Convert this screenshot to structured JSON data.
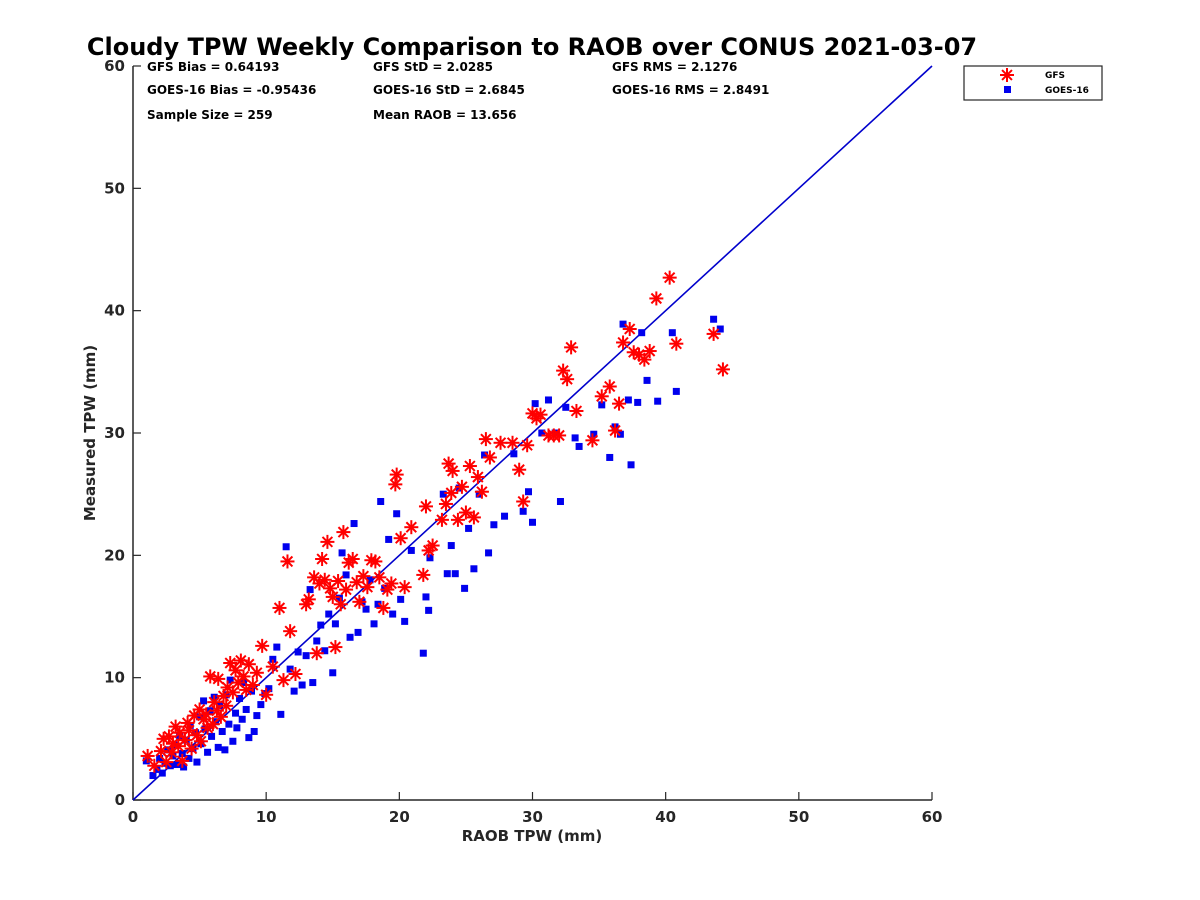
{
  "chart_data": {
    "type": "scatter",
    "title": "Cloudy TPW Weekly Comparison to RAOB over CONUS 2021-03-07",
    "xlabel": "RAOB TPW (mm)",
    "ylabel": "Measured TPW (mm)",
    "xlim": [
      0,
      60
    ],
    "ylim": [
      0,
      60
    ],
    "xticks": [
      "0",
      "10",
      "20",
      "30",
      "40",
      "50",
      "60"
    ],
    "yticks": [
      "0",
      "10",
      "20",
      "30",
      "40",
      "50",
      "60"
    ],
    "grid": false,
    "legend_position": "top-right, outside axes",
    "reference_line": {
      "from": [
        0,
        0
      ],
      "to": [
        60,
        60
      ],
      "color": "#0000cc"
    },
    "stats": {
      "gfs_bias": "GFS Bias = 0.64193",
      "gfs_std": "GFS StD = 2.0285",
      "gfs_rms": "GFS RMS = 2.1276",
      "goes_bias": "GOES-16 Bias = -0.95436",
      "goes_std": "GOES-16 StD = 2.6845",
      "goes_rms": "GOES-16 RMS = 2.8491",
      "sample_size": "Sample Size = 259",
      "mean_raob": "Mean RAOB = 13.656"
    },
    "series": [
      {
        "name": "GFS",
        "marker": "asterisk",
        "color": "#ff0000",
        "points": [
          [
            1.1,
            3.6
          ],
          [
            1.6,
            2.8
          ],
          [
            2.1,
            4.0
          ],
          [
            2.3,
            5.0
          ],
          [
            2.5,
            3.1
          ],
          [
            2.7,
            5.2
          ],
          [
            2.9,
            3.9
          ],
          [
            3.0,
            4.6
          ],
          [
            3.2,
            6.0
          ],
          [
            3.4,
            4.4
          ],
          [
            3.5,
            5.5
          ],
          [
            3.7,
            3.2
          ],
          [
            3.9,
            4.9
          ],
          [
            4.1,
            6.3
          ],
          [
            4.2,
            5.7
          ],
          [
            4.4,
            4.2
          ],
          [
            4.6,
            6.9
          ],
          [
            4.8,
            5.3
          ],
          [
            5.0,
            7.4
          ],
          [
            5.1,
            4.8
          ],
          [
            5.3,
            6.6
          ],
          [
            5.5,
            7.0
          ],
          [
            5.6,
            5.9
          ],
          [
            5.8,
            10.1
          ],
          [
            6.0,
            6.2
          ],
          [
            6.1,
            8.0
          ],
          [
            6.3,
            7.3
          ],
          [
            6.4,
            9.9
          ],
          [
            6.6,
            6.8
          ],
          [
            6.8,
            8.5
          ],
          [
            7.0,
            7.7
          ],
          [
            7.1,
            9.2
          ],
          [
            7.3,
            11.2
          ],
          [
            7.5,
            8.8
          ],
          [
            7.7,
            10.6
          ],
          [
            7.9,
            9.6
          ],
          [
            8.1,
            11.4
          ],
          [
            8.3,
            10.1
          ],
          [
            8.5,
            9.0
          ],
          [
            8.7,
            11.1
          ],
          [
            9.0,
            9.4
          ],
          [
            9.3,
            10.4
          ],
          [
            9.7,
            12.6
          ],
          [
            10.0,
            8.6
          ],
          [
            10.5,
            10.9
          ],
          [
            11.0,
            15.7
          ],
          [
            11.3,
            9.8
          ],
          [
            11.6,
            19.5
          ],
          [
            11.8,
            13.8
          ],
          [
            12.2,
            10.3
          ],
          [
            13.0,
            16.0
          ],
          [
            13.2,
            16.4
          ],
          [
            13.6,
            18.2
          ],
          [
            13.8,
            12.0
          ],
          [
            14.0,
            17.7
          ],
          [
            14.2,
            19.7
          ],
          [
            14.4,
            18.0
          ],
          [
            14.6,
            21.1
          ],
          [
            14.8,
            17.3
          ],
          [
            15.0,
            16.6
          ],
          [
            15.2,
            12.5
          ],
          [
            15.4,
            17.9
          ],
          [
            15.6,
            16.0
          ],
          [
            15.8,
            21.9
          ],
          [
            16.0,
            17.2
          ],
          [
            16.2,
            19.4
          ],
          [
            16.5,
            19.7
          ],
          [
            16.8,
            17.8
          ],
          [
            17.0,
            16.2
          ],
          [
            17.3,
            18.3
          ],
          [
            17.6,
            17.4
          ],
          [
            17.9,
            19.6
          ],
          [
            18.2,
            19.5
          ],
          [
            18.5,
            18.2
          ],
          [
            18.8,
            15.7
          ],
          [
            19.1,
            17.2
          ],
          [
            19.4,
            17.7
          ],
          [
            19.7,
            25.8
          ],
          [
            19.8,
            26.6
          ],
          [
            20.1,
            21.4
          ],
          [
            20.4,
            17.4
          ],
          [
            20.9,
            22.3
          ],
          [
            21.8,
            18.4
          ],
          [
            22.0,
            24.0
          ],
          [
            22.2,
            20.4
          ],
          [
            22.5,
            20.8
          ],
          [
            23.2,
            22.9
          ],
          [
            23.5,
            24.2
          ],
          [
            23.7,
            27.5
          ],
          [
            23.9,
            25.1
          ],
          [
            24.0,
            26.9
          ],
          [
            24.4,
            22.9
          ],
          [
            24.7,
            25.6
          ],
          [
            25.0,
            23.5
          ],
          [
            25.3,
            27.3
          ],
          [
            25.6,
            23.1
          ],
          [
            25.9,
            26.4
          ],
          [
            26.2,
            25.2
          ],
          [
            26.5,
            29.5
          ],
          [
            26.8,
            28.0
          ],
          [
            27.6,
            29.2
          ],
          [
            28.5,
            29.2
          ],
          [
            29.0,
            27.0
          ],
          [
            29.3,
            24.4
          ],
          [
            29.6,
            29.0
          ],
          [
            30.0,
            31.6
          ],
          [
            30.3,
            31.2
          ],
          [
            30.6,
            31.5
          ],
          [
            31.2,
            29.8
          ],
          [
            31.6,
            29.8
          ],
          [
            32.0,
            29.8
          ],
          [
            32.3,
            35.1
          ],
          [
            32.6,
            34.4
          ],
          [
            32.9,
            37.0
          ],
          [
            33.3,
            31.8
          ],
          [
            34.5,
            29.4
          ],
          [
            35.2,
            33.0
          ],
          [
            35.8,
            33.8
          ],
          [
            36.2,
            30.2
          ],
          [
            36.5,
            32.4
          ],
          [
            36.8,
            37.4
          ],
          [
            37.3,
            38.5
          ],
          [
            37.6,
            36.6
          ],
          [
            38.0,
            36.4
          ],
          [
            38.4,
            36.0
          ],
          [
            38.8,
            36.7
          ],
          [
            39.3,
            41.0
          ],
          [
            40.3,
            42.7
          ],
          [
            40.8,
            37.3
          ],
          [
            43.6,
            38.1
          ],
          [
            44.3,
            35.2
          ]
        ]
      },
      {
        "name": "GOES-16",
        "marker": "square",
        "color": "#0000ee",
        "points": [
          [
            1.0,
            3.2
          ],
          [
            1.5,
            2.0
          ],
          [
            1.8,
            2.5
          ],
          [
            2.0,
            3.4
          ],
          [
            2.2,
            2.2
          ],
          [
            2.4,
            3.0
          ],
          [
            2.6,
            4.1
          ],
          [
            2.8,
            2.8
          ],
          [
            3.0,
            3.6
          ],
          [
            3.2,
            4.5
          ],
          [
            3.3,
            2.9
          ],
          [
            3.5,
            5.2
          ],
          [
            3.7,
            3.8
          ],
          [
            3.8,
            2.7
          ],
          [
            4.0,
            4.9
          ],
          [
            4.2,
            3.4
          ],
          [
            4.3,
            6.1
          ],
          [
            4.5,
            4.2
          ],
          [
            4.7,
            5.5
          ],
          [
            4.8,
            3.1
          ],
          [
            5.0,
            6.8
          ],
          [
            5.1,
            4.6
          ],
          [
            5.3,
            8.1
          ],
          [
            5.4,
            5.8
          ],
          [
            5.6,
            3.9
          ],
          [
            5.8,
            7.3
          ],
          [
            5.9,
            5.2
          ],
          [
            6.1,
            8.4
          ],
          [
            6.2,
            6.4
          ],
          [
            6.4,
            4.3
          ],
          [
            6.5,
            7.7
          ],
          [
            6.7,
            5.6
          ],
          [
            6.9,
            4.1
          ],
          [
            7.0,
            8.6
          ],
          [
            7.2,
            6.2
          ],
          [
            7.3,
            9.8
          ],
          [
            7.5,
            4.8
          ],
          [
            7.7,
            7.1
          ],
          [
            7.8,
            5.9
          ],
          [
            8.0,
            8.3
          ],
          [
            8.2,
            6.6
          ],
          [
            8.3,
            9.6
          ],
          [
            8.5,
            7.4
          ],
          [
            8.7,
            5.1
          ],
          [
            8.9,
            8.9
          ],
          [
            9.1,
            5.6
          ],
          [
            9.3,
            6.9
          ],
          [
            9.6,
            7.8
          ],
          [
            9.9,
            8.7
          ],
          [
            10.2,
            9.1
          ],
          [
            10.5,
            11.5
          ],
          [
            10.8,
            12.5
          ],
          [
            11.1,
            7.0
          ],
          [
            11.5,
            20.7
          ],
          [
            11.8,
            10.7
          ],
          [
            12.1,
            8.9
          ],
          [
            12.4,
            12.1
          ],
          [
            12.7,
            9.4
          ],
          [
            13.0,
            11.8
          ],
          [
            13.3,
            17.2
          ],
          [
            13.5,
            9.6
          ],
          [
            13.8,
            13.0
          ],
          [
            14.1,
            14.3
          ],
          [
            14.4,
            12.2
          ],
          [
            14.7,
            15.2
          ],
          [
            15.0,
            10.4
          ],
          [
            15.2,
            14.4
          ],
          [
            15.5,
            16.5
          ],
          [
            15.7,
            20.2
          ],
          [
            16.0,
            18.4
          ],
          [
            16.3,
            13.3
          ],
          [
            16.6,
            22.6
          ],
          [
            16.9,
            13.7
          ],
          [
            17.2,
            16.2
          ],
          [
            17.5,
            15.6
          ],
          [
            17.8,
            18.0
          ],
          [
            18.1,
            14.4
          ],
          [
            18.4,
            16.0
          ],
          [
            18.6,
            24.4
          ],
          [
            18.9,
            17.3
          ],
          [
            19.2,
            21.3
          ],
          [
            19.5,
            15.2
          ],
          [
            19.8,
            23.4
          ],
          [
            20.1,
            16.4
          ],
          [
            20.4,
            14.6
          ],
          [
            20.9,
            20.4
          ],
          [
            21.8,
            12.0
          ],
          [
            22.0,
            16.6
          ],
          [
            22.2,
            15.5
          ],
          [
            22.3,
            19.8
          ],
          [
            23.3,
            25.0
          ],
          [
            23.6,
            18.5
          ],
          [
            23.9,
            20.8
          ],
          [
            24.2,
            18.5
          ],
          [
            24.5,
            25.5
          ],
          [
            24.9,
            17.3
          ],
          [
            25.2,
            22.2
          ],
          [
            25.6,
            18.9
          ],
          [
            26.0,
            25.0
          ],
          [
            26.4,
            28.2
          ],
          [
            26.7,
            20.2
          ],
          [
            27.1,
            22.5
          ],
          [
            27.9,
            23.2
          ],
          [
            28.6,
            28.3
          ],
          [
            29.3,
            23.6
          ],
          [
            29.7,
            25.2
          ],
          [
            30.0,
            22.7
          ],
          [
            30.2,
            32.4
          ],
          [
            30.7,
            30.0
          ],
          [
            31.2,
            32.7
          ],
          [
            31.7,
            30.0
          ],
          [
            32.1,
            24.4
          ],
          [
            32.5,
            32.1
          ],
          [
            33.2,
            29.6
          ],
          [
            33.5,
            28.9
          ],
          [
            34.6,
            29.9
          ],
          [
            35.2,
            32.3
          ],
          [
            35.8,
            28.0
          ],
          [
            36.2,
            30.5
          ],
          [
            36.6,
            29.9
          ],
          [
            36.8,
            38.9
          ],
          [
            37.2,
            32.7
          ],
          [
            37.4,
            27.4
          ],
          [
            37.9,
            32.5
          ],
          [
            38.2,
            38.2
          ],
          [
            38.6,
            34.3
          ],
          [
            39.4,
            32.6
          ],
          [
            40.5,
            38.2
          ],
          [
            40.8,
            33.4
          ],
          [
            43.6,
            39.3
          ],
          [
            44.1,
            38.5
          ]
        ]
      }
    ]
  }
}
